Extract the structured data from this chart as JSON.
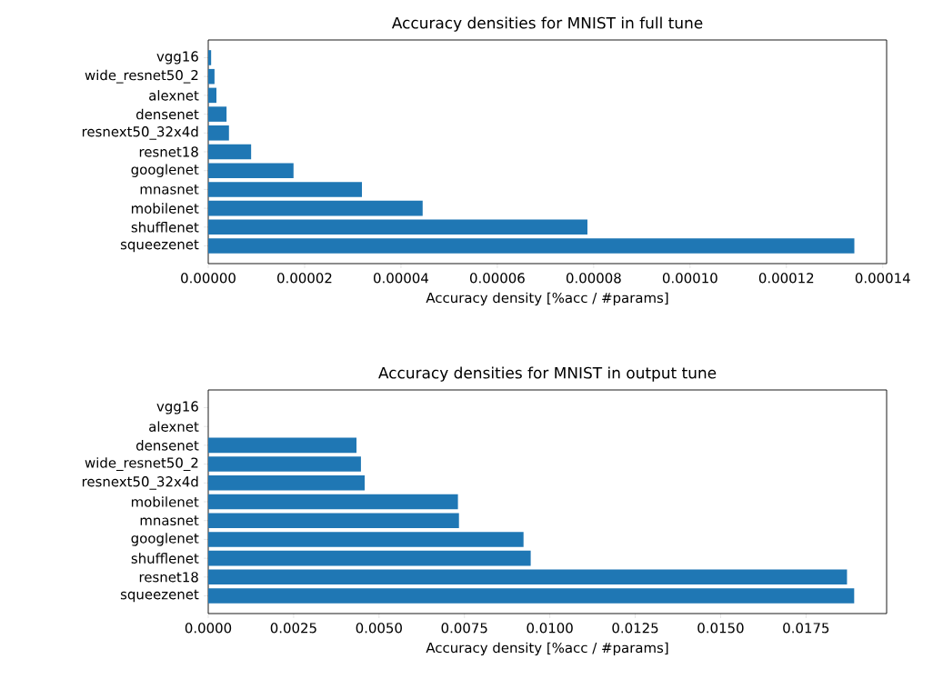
{
  "chart_data": [
    {
      "type": "bar",
      "orientation": "horizontal",
      "title": "Accuracy densities for MNIST in full tune",
      "xlabel": "Accuracy density [%acc / #params]",
      "categories": [
        "vgg16",
        "wide_resnet50_2",
        "alexnet",
        "densenet",
        "resnext50_32x4d",
        "resnet18",
        "googlenet",
        "mnasnet",
        "mobilenet",
        "shufflenet",
        "squeezenet"
      ],
      "values": [
        6e-07,
        1.3e-06,
        1.7e-06,
        3.8e-06,
        4.3e-06,
        8.9e-06,
        1.77e-05,
        3.19e-05,
        4.45e-05,
        7.87e-05,
        0.0001341
      ],
      "color": "#1f77b4",
      "xlim": [
        0,
        0.0001408
      ],
      "xticks": [
        {
          "value": 0,
          "label": "0.00000"
        },
        {
          "value": 2e-05,
          "label": "0.00002"
        },
        {
          "value": 4e-05,
          "label": "0.00004"
        },
        {
          "value": 6e-05,
          "label": "0.00006"
        },
        {
          "value": 8e-05,
          "label": "0.00008"
        },
        {
          "value": 0.0001,
          "label": "0.00010"
        },
        {
          "value": 0.00012,
          "label": "0.00012"
        },
        {
          "value": 0.00014,
          "label": "0.00014"
        }
      ]
    },
    {
      "type": "bar",
      "orientation": "horizontal",
      "title": "Accuracy densities for MNIST in output tune",
      "xlabel": "Accuracy density [%acc / #params]",
      "categories": [
        "vgg16",
        "alexnet",
        "densenet",
        "wide_resnet50_2",
        "resnext50_32x4d",
        "mobilenet",
        "mnasnet",
        "googlenet",
        "shufflenet",
        "resnet18",
        "squeezenet"
      ],
      "values": [
        0,
        0,
        0.00434,
        0.00447,
        0.00458,
        0.00731,
        0.00734,
        0.00923,
        0.00944,
        0.0187,
        0.01891
      ],
      "color": "#1f77b4",
      "xlim": [
        0,
        0.01986
      ],
      "xticks": [
        {
          "value": 0,
          "label": "0.0000"
        },
        {
          "value": 0.0025,
          "label": "0.0025"
        },
        {
          "value": 0.005,
          "label": "0.0050"
        },
        {
          "value": 0.0075,
          "label": "0.0075"
        },
        {
          "value": 0.01,
          "label": "0.0100"
        },
        {
          "value": 0.0125,
          "label": "0.0125"
        },
        {
          "value": 0.015,
          "label": "0.0150"
        },
        {
          "value": 0.0175,
          "label": "0.0175"
        }
      ]
    }
  ]
}
